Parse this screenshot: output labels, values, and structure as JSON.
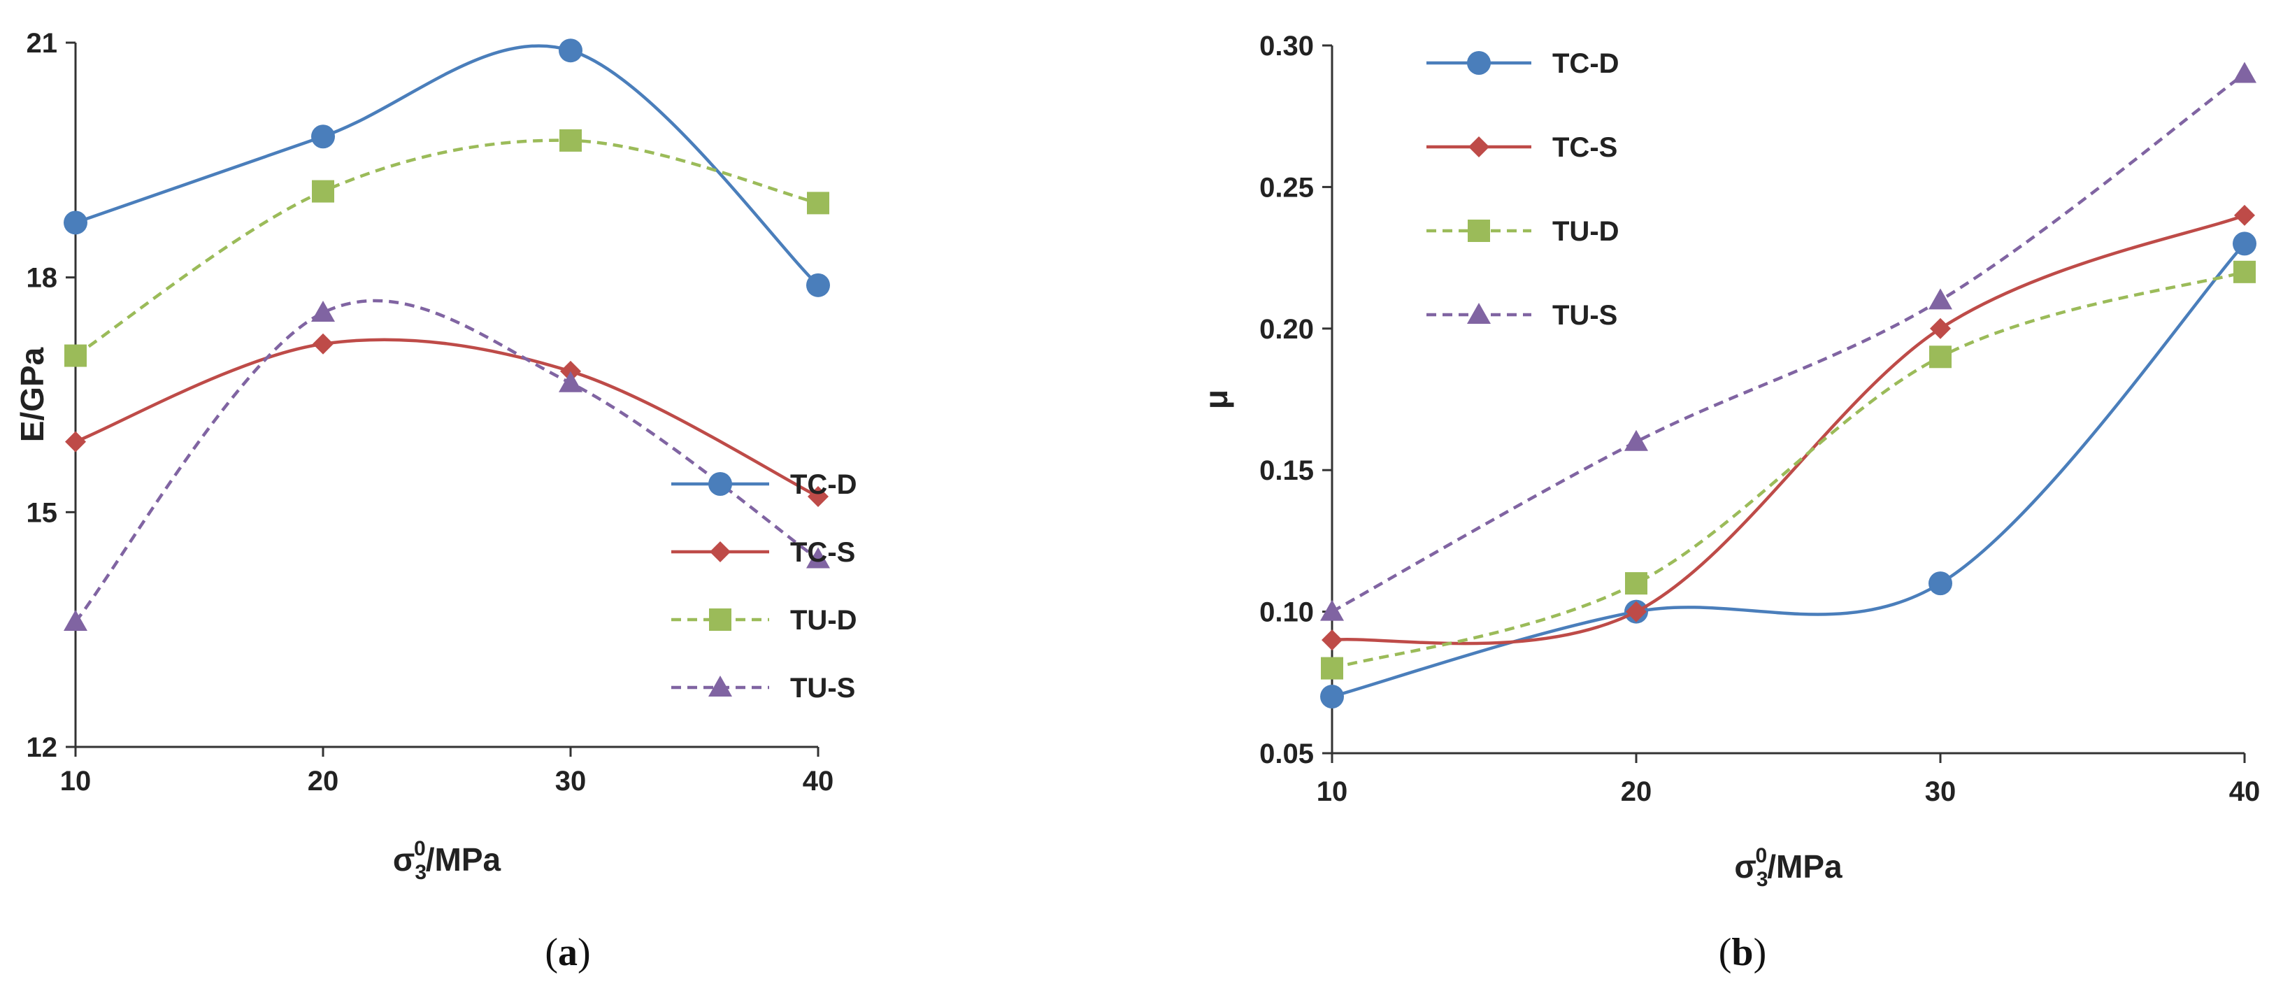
{
  "chart_data": [
    {
      "type": "line",
      "panel_label": "a",
      "ylabel": "E/GPa",
      "xlabel": {
        "base": "σ",
        "sub": "3",
        "sup": "0",
        "suffix": "/MPa"
      },
      "x": [
        10,
        20,
        30,
        40
      ],
      "xlim": [
        10,
        40
      ],
      "ylim": [
        12,
        21
      ],
      "yticks": [
        "12",
        "15",
        "18",
        "21"
      ],
      "xticks": [
        "10",
        "20",
        "30",
        "40"
      ],
      "legend_position": "lower-right",
      "series": [
        {
          "name": "TC-D",
          "values": [
            18.7,
            19.8,
            20.9,
            17.9
          ],
          "color": "#4a7ebb",
          "dashed": false,
          "marker": "circle"
        },
        {
          "name": "TC-S",
          "values": [
            15.9,
            17.15,
            16.8,
            15.2
          ],
          "color": "#be4b48",
          "dashed": false,
          "marker": "diamond"
        },
        {
          "name": "TU-D",
          "values": [
            17.0,
            19.1,
            19.75,
            18.95
          ],
          "color": "#9bbb59",
          "dashed": true,
          "marker": "square"
        },
        {
          "name": "TU-S",
          "values": [
            13.6,
            17.55,
            16.65,
            14.4
          ],
          "color": "#8064a2",
          "dashed": true,
          "marker": "triangle"
        }
      ]
    },
    {
      "type": "line",
      "panel_label": "b",
      "ylabel": "μ",
      "xlabel": {
        "base": "σ",
        "sub": "3",
        "sup": "0",
        "suffix": "/MPa"
      },
      "x": [
        10,
        20,
        30,
        40
      ],
      "xlim": [
        10,
        40
      ],
      "ylim": [
        0.05,
        0.3
      ],
      "yticks": [
        "0.05",
        "0.10",
        "0.15",
        "0.20",
        "0.25",
        "0.30"
      ],
      "xticks": [
        "10",
        "20",
        "30",
        "40"
      ],
      "legend_position": "top-left",
      "series": [
        {
          "name": "TC-D",
          "values": [
            0.07,
            0.1,
            0.11,
            0.23
          ],
          "color": "#4a7ebb",
          "dashed": false,
          "marker": "circle"
        },
        {
          "name": "TC-S",
          "values": [
            0.09,
            0.1,
            0.2,
            0.24
          ],
          "color": "#be4b48",
          "dashed": false,
          "marker": "diamond"
        },
        {
          "name": "TU-D",
          "values": [
            0.08,
            0.11,
            0.19,
            0.22
          ],
          "color": "#9bbb59",
          "dashed": true,
          "marker": "square"
        },
        {
          "name": "TU-S",
          "values": [
            0.1,
            0.16,
            0.21,
            0.29
          ],
          "color": "#8064a2",
          "dashed": true,
          "marker": "triangle"
        }
      ]
    }
  ]
}
